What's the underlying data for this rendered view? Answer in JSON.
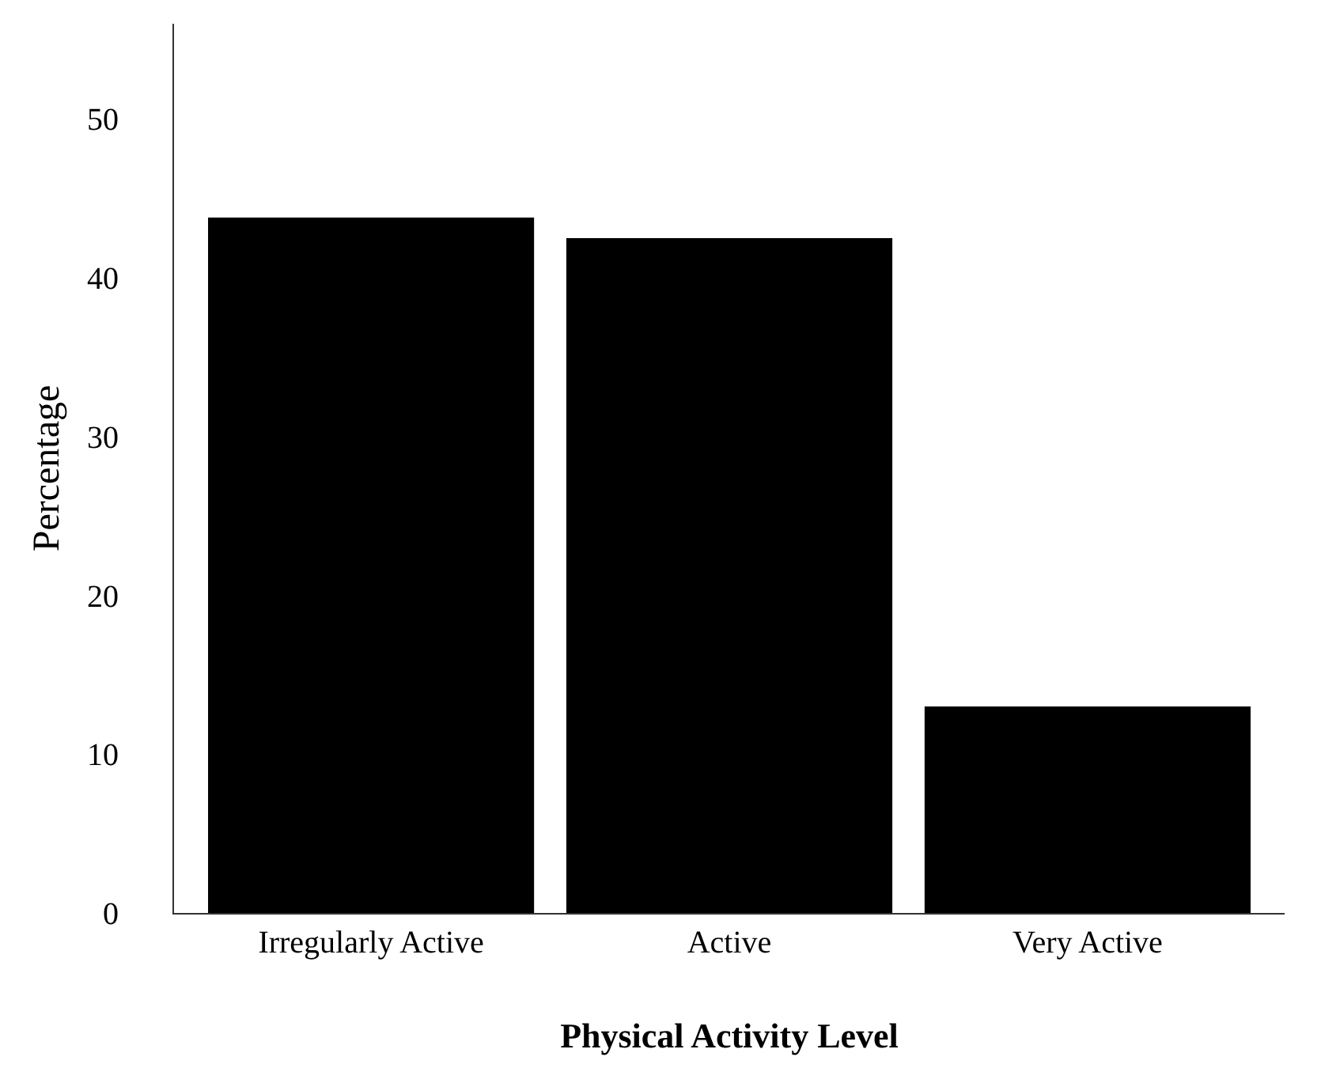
{
  "chart_data": {
    "type": "bar",
    "categories": [
      "Irregularly Active",
      "Active",
      "Very Active"
    ],
    "values": [
      43.8,
      42.5,
      13.0
    ],
    "color": "#000000",
    "xlabel": "Physical Activity Level",
    "ylabel": "Percentage",
    "ylim": [
      0,
      56
    ],
    "yticks": [
      0,
      10,
      20,
      30,
      40,
      50
    ],
    "grid": false,
    "legend": false
  }
}
